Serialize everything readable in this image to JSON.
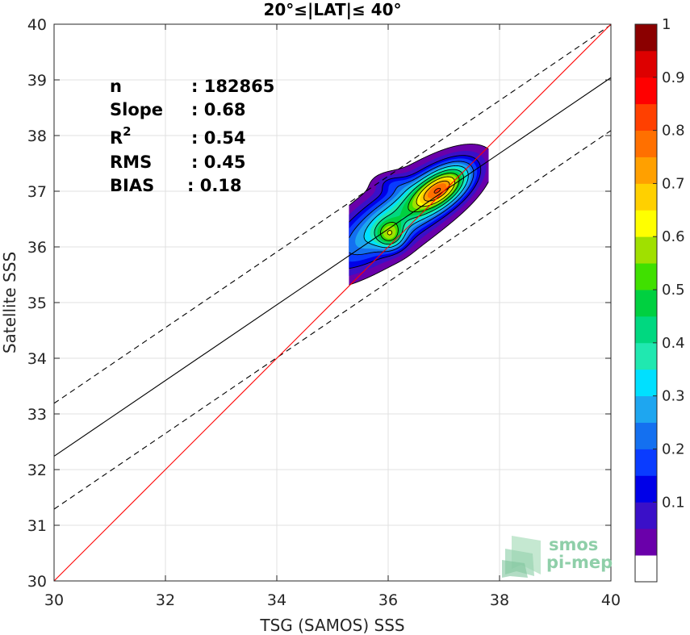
{
  "chart_data": {
    "type": "contour",
    "title": "20°≤|LAT|≤ 40°",
    "xlabel": "TSG (SAMOS) SSS",
    "ylabel": "Satellite SSS",
    "xlim": [
      30,
      40
    ],
    "ylim": [
      30,
      40
    ],
    "xticks": [
      "30",
      "32",
      "34",
      "36",
      "38",
      "40"
    ],
    "yticks": [
      "30",
      "31",
      "32",
      "33",
      "34",
      "35",
      "36",
      "37",
      "38",
      "39",
      "40"
    ],
    "grid": true,
    "stats": [
      {
        "label": "n",
        "value": ": 182865"
      },
      {
        "label": "Slope",
        "value": ": 0.68"
      },
      {
        "label": "R",
        "sup": "2",
        "value": ": 0.54"
      },
      {
        "label": "RMS",
        "value": ": 0.45"
      },
      {
        "label": "BIAS",
        "value": ": 0.18"
      }
    ],
    "lines": {
      "identity": {
        "slope": 1,
        "intercept": 0,
        "color": "#ff0000"
      },
      "fit": {
        "slope": 0.68,
        "intercept": 11.84,
        "color": "#000000"
      },
      "fit_band_offset": 0.95
    },
    "colorbar": {
      "ticks": [
        "0.1",
        "0.2",
        "0.3",
        "0.4",
        "0.5",
        "0.6",
        "0.7",
        "0.8",
        "0.9",
        "1"
      ],
      "levels": [
        0,
        0.05,
        0.1,
        0.15,
        0.2,
        0.25,
        0.3,
        0.35,
        0.4,
        0.45,
        0.5,
        0.55,
        0.6,
        0.65,
        0.7,
        0.75,
        0.8,
        0.85,
        0.9,
        0.95,
        1
      ],
      "colors": [
        "#ffffff",
        "#6a00aa",
        "#3a10c8",
        "#0000e8",
        "#0a3cff",
        "#1470f0",
        "#1ea6f0",
        "#00e0ff",
        "#20e8b0",
        "#00d880",
        "#00d040",
        "#40e000",
        "#a0e000",
        "#ffff00",
        "#ffd000",
        "#ffa000",
        "#ff7000",
        "#ff4000",
        "#ff0000",
        "#dd0000",
        "#8b0000"
      ]
    },
    "density_peaks": [
      {
        "x": 36.95,
        "y": 37.05,
        "value": 1.0
      },
      {
        "x": 36.05,
        "y": 36.2,
        "value": 0.63
      }
    ]
  },
  "logo": {
    "line1": "smos",
    "line2": "pi-mep"
  }
}
